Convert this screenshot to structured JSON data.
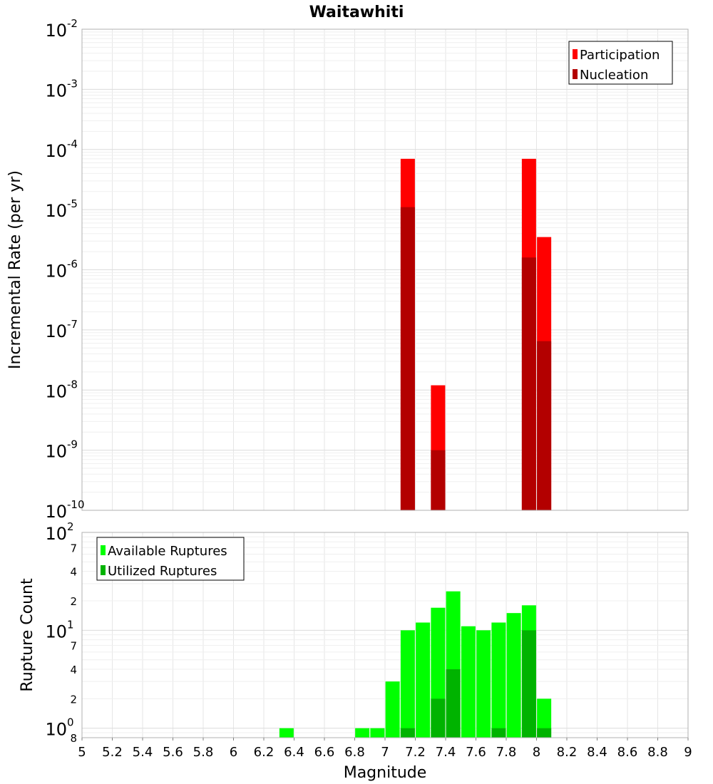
{
  "chart_data": [
    {
      "type": "bar",
      "title": "Waitawhiti",
      "xlabel": "",
      "ylabel": "Incremental Rate (per yr)",
      "yscale": "log",
      "ylim": [
        1e-10,
        0.01
      ],
      "xlim": [
        5,
        9
      ],
      "x": [
        7.15,
        7.35,
        7.95,
        8.05
      ],
      "series": [
        {
          "name": "Participation",
          "color": "#ff0000",
          "values": [
            7e-05,
            1.2e-08,
            7e-05,
            3.5e-06
          ]
        },
        {
          "name": "Nucleation",
          "color": "#b30000",
          "values": [
            1.1e-05,
            1e-09,
            1.6e-06,
            6.5e-08
          ]
        }
      ],
      "y_ticks": [
        {
          "base": "10",
          "exp": "-2"
        },
        {
          "base": "10",
          "exp": "-3"
        },
        {
          "base": "10",
          "exp": "-4"
        },
        {
          "base": "10",
          "exp": "-5"
        },
        {
          "base": "10",
          "exp": "-6"
        },
        {
          "base": "10",
          "exp": "-7"
        },
        {
          "base": "10",
          "exp": "-8"
        },
        {
          "base": "10",
          "exp": "-9"
        },
        {
          "base": "10",
          "exp": "-10"
        }
      ],
      "legend_position": "top-right",
      "grid": true
    },
    {
      "type": "bar",
      "title": "",
      "xlabel": "Magnitude",
      "ylabel": "Rupture Count",
      "yscale": "log",
      "ylim": [
        0.8,
        100
      ],
      "xlim": [
        5,
        9
      ],
      "x": [
        6.35,
        6.85,
        6.95,
        7.05,
        7.15,
        7.25,
        7.35,
        7.45,
        7.55,
        7.65,
        7.75,
        7.85,
        7.95,
        8.05
      ],
      "series": [
        {
          "name": "Available Ruptures",
          "color": "#00ff00",
          "values": [
            1,
            1,
            1,
            3,
            10,
            12,
            17,
            25,
            11,
            10,
            12,
            15,
            18,
            2
          ]
        },
        {
          "name": "Utilized Ruptures",
          "color": "#00b300",
          "values": [
            0,
            0,
            0,
            0,
            1,
            0,
            2,
            4,
            0,
            0,
            1,
            0,
            10,
            1
          ]
        }
      ],
      "y_major_ticks": [
        {
          "base": "10",
          "exp": "2"
        },
        {
          "base": "10",
          "exp": "1"
        },
        {
          "base": "10",
          "exp": "0"
        }
      ],
      "y_minor_ticks": [
        "7",
        "4",
        "2",
        "7",
        "4",
        "2",
        "8"
      ],
      "x_ticks": [
        "5",
        "5.2",
        "5.4",
        "5.6",
        "5.8",
        "6",
        "6.2",
        "6.4",
        "6.6",
        "6.8",
        "7",
        "7.2",
        "7.4",
        "7.6",
        "7.8",
        "8",
        "8.2",
        "8.4",
        "8.6",
        "8.8",
        "9"
      ],
      "legend_position": "top-left",
      "grid": true
    }
  ]
}
